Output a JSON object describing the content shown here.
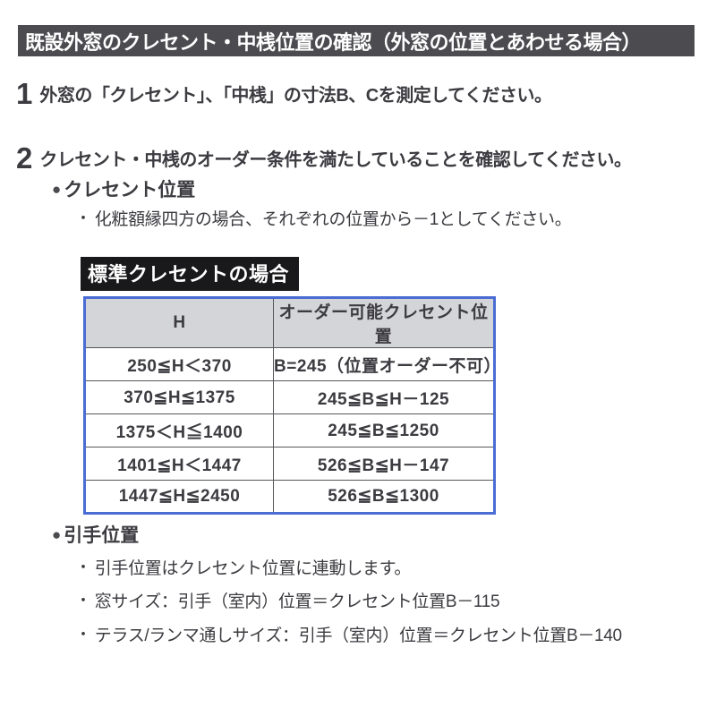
{
  "header": {
    "title": "既設外窓のクレセント・中桟位置の確認（外窓の位置とあわせる場合）"
  },
  "steps": [
    {
      "number": "1",
      "text": "外窓の「クレセント」、「中桟」の寸法B、Cを測定してください。"
    },
    {
      "number": "2",
      "text": "クレセント・中桟のオーダー条件を満たしていることを確認してください。"
    }
  ],
  "glyphs": {
    "section_bullet": "●",
    "note_bullet": "・"
  },
  "crescent_section": {
    "title": "クレセント位置",
    "note": "化粧額縁四方の場合、それぞれの位置から－1としてください。",
    "table_label": "標準クレセントの場合"
  },
  "table": {
    "headers": [
      "H",
      "オーダー可能クレセント位置"
    ],
    "rows": [
      [
        "250≦H＜370",
        "B=245（位置オーダー不可）"
      ],
      [
        "370≦H≦1375",
        "245≦B≦H－125"
      ],
      [
        "1375＜H≦1400",
        "245≦B≦1250"
      ],
      [
        "1401≦H＜1447",
        "526≦B≦H－147"
      ],
      [
        "1447≦H≦2450",
        "526≦B≦1300"
      ]
    ],
    "border_color": "#4a6cd3",
    "header_bg": "#d4d5d9"
  },
  "handle_section": {
    "title": "引手位置",
    "notes": [
      "引手位置はクレセント位置に連動します。",
      "窓サイズ：引手（室内）位置＝クレセント位置B－115",
      "テラス/ランマ通しサイズ：引手（室内）位置＝クレセント位置B－140"
    ]
  }
}
